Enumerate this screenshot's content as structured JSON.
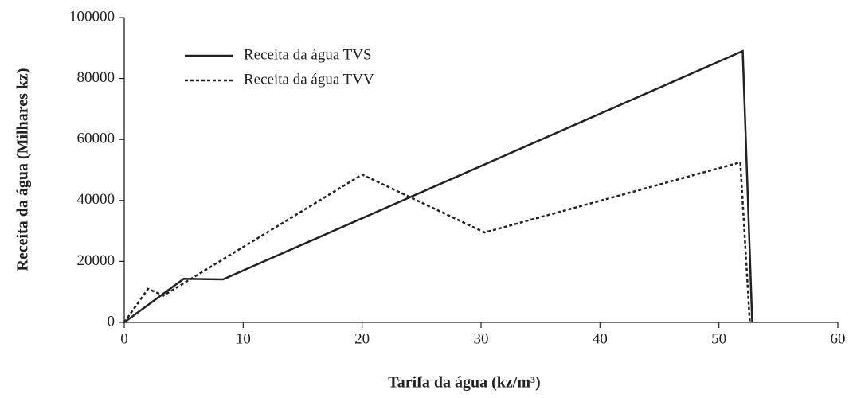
{
  "chart_data": {
    "type": "line",
    "xlabel": "Tarifa da água (kz/m³)",
    "ylabel": "Receita da água (Milhares kz)",
    "xlim": [
      0,
      60
    ],
    "xticks": [
      0,
      10,
      20,
      30,
      40,
      50,
      60
    ],
    "ylim": [
      0,
      100000
    ],
    "yticks": [
      0,
      20000,
      40000,
      60000,
      80000,
      100000
    ],
    "grid": false,
    "legend": "upper left",
    "series": [
      {
        "name": "Receita da água TVS",
        "color": "#222222",
        "linestyle": "solid",
        "x": [
          0,
          5,
          8.3,
          52,
          52.8
        ],
        "values": [
          0,
          14300,
          14100,
          89000,
          0
        ]
      },
      {
        "name": "Receita da água TVV",
        "color": "#222222",
        "linestyle": "dotted",
        "x": [
          0,
          2,
          3.3,
          20,
          30.3,
          51.8,
          52.6
        ],
        "values": [
          0,
          11000,
          8800,
          48500,
          29500,
          52500,
          0
        ]
      }
    ]
  }
}
